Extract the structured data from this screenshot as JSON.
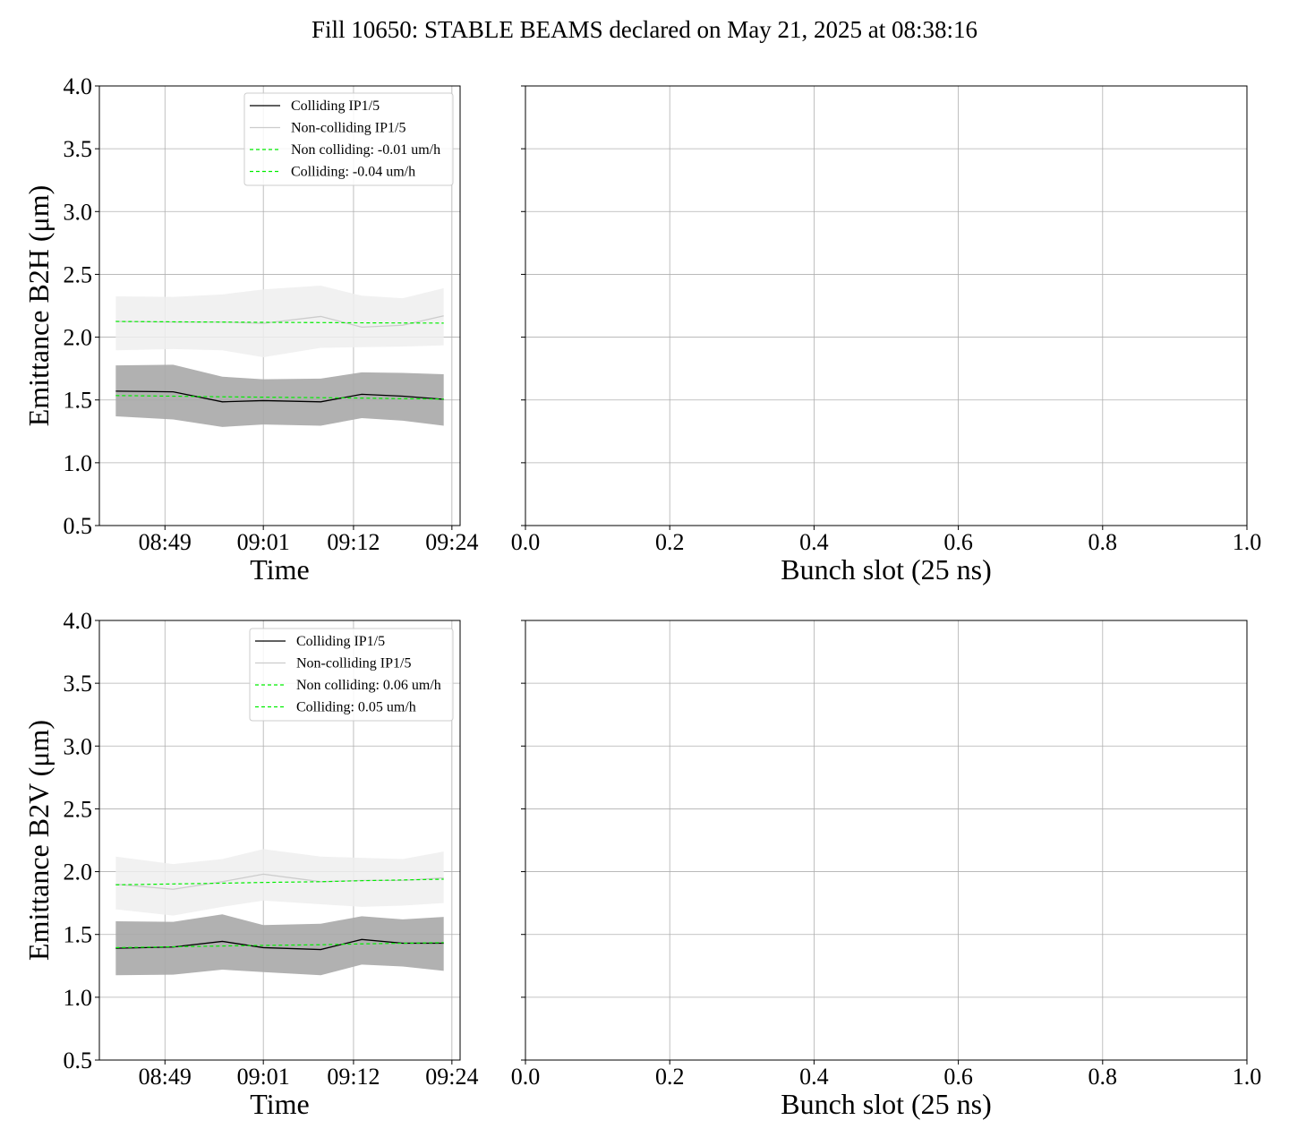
{
  "figure": {
    "title": "Fill 10650: STABLE BEAMS declared on May 21, 2025 at 08:38:16"
  },
  "colors": {
    "colliding_line": "#000000",
    "colliding_band": "#a9a9a9",
    "noncolliding_line": "#cccccc",
    "noncolliding_band": "#eeeeee",
    "fit_line": "#00ee00",
    "grid": "#b0b0b0"
  },
  "chart_data": [
    {
      "id": "b2h-time",
      "type": "line",
      "ylabel": "Emittance B2H (μm)",
      "xlabel": "Time",
      "ylim": [
        0.5,
        4.0
      ],
      "yticks": [
        0.5,
        1.0,
        1.5,
        2.0,
        2.5,
        3.0,
        3.5,
        4.0
      ],
      "ytick_labels": [
        "0.5",
        "1.0",
        "1.5",
        "2.0",
        "2.5",
        "3.0",
        "3.5",
        "4.0"
      ],
      "xlim": [
        "08:41",
        "09:25"
      ],
      "xticks": [
        "08:49",
        "09:01",
        "09:12",
        "09:24"
      ],
      "grid": true,
      "legend_position": "top-right",
      "x": [
        "08:43",
        "08:50",
        "08:56",
        "09:01",
        "09:08",
        "09:13",
        "09:18",
        "09:23"
      ],
      "series": [
        {
          "name": "Colliding IP1/5",
          "kind": "line",
          "values": [
            1.57,
            1.565,
            1.485,
            1.495,
            1.485,
            1.545,
            1.53,
            1.505
          ],
          "band_low": [
            1.37,
            1.345,
            1.285,
            1.305,
            1.295,
            1.355,
            1.335,
            1.295
          ],
          "band_high": [
            1.775,
            1.78,
            1.685,
            1.665,
            1.67,
            1.72,
            1.715,
            1.705
          ]
        },
        {
          "name": "Non-colliding IP1/5",
          "kind": "line",
          "values": [
            2.125,
            2.12,
            2.12,
            2.11,
            2.165,
            2.08,
            2.095,
            2.17
          ],
          "band_low": [
            1.895,
            1.905,
            1.895,
            1.84,
            1.915,
            1.92,
            1.925,
            1.935
          ],
          "band_high": [
            2.325,
            2.32,
            2.34,
            2.38,
            2.41,
            2.33,
            2.31,
            2.39
          ]
        },
        {
          "name": "Non colliding: -0.01 um/h",
          "kind": "fit",
          "values": [
            2.125,
            2.122,
            2.12,
            2.118,
            2.116,
            2.114,
            2.113,
            2.112
          ]
        },
        {
          "name": "Colliding: -0.04 um/h",
          "kind": "fit",
          "values": [
            1.535,
            1.53,
            1.525,
            1.522,
            1.518,
            1.515,
            1.51,
            1.507
          ]
        }
      ]
    },
    {
      "id": "b2h-bunch",
      "type": "scatter",
      "xlabel": "Bunch slot (25 ns)",
      "xlim": [
        0.0,
        1.0
      ],
      "xticks": [
        "0.0",
        "0.2",
        "0.4",
        "0.6",
        "0.8",
        "1.0"
      ],
      "ylim": [
        0.5,
        4.0
      ],
      "grid": true,
      "series": []
    },
    {
      "id": "b2v-time",
      "type": "line",
      "ylabel": "Emittance B2V (μm)",
      "xlabel": "Time",
      "ylim": [
        0.5,
        4.0
      ],
      "yticks": [
        0.5,
        1.0,
        1.5,
        2.0,
        2.5,
        3.0,
        3.5,
        4.0
      ],
      "ytick_labels": [
        "0.5",
        "1.0",
        "1.5",
        "2.0",
        "2.5",
        "3.0",
        "3.5",
        "4.0"
      ],
      "xlim": [
        "08:41",
        "09:25"
      ],
      "xticks": [
        "08:49",
        "09:01",
        "09:12",
        "09:24"
      ],
      "grid": true,
      "legend_position": "top-right",
      "x": [
        "08:43",
        "08:50",
        "08:56",
        "09:01",
        "09:08",
        "09:13",
        "09:18",
        "09:23"
      ],
      "series": [
        {
          "name": "Colliding IP1/5",
          "kind": "line",
          "values": [
            1.39,
            1.4,
            1.445,
            1.395,
            1.38,
            1.46,
            1.43,
            1.43
          ],
          "band_low": [
            1.175,
            1.18,
            1.22,
            1.2,
            1.175,
            1.26,
            1.245,
            1.21
          ],
          "band_high": [
            1.605,
            1.6,
            1.66,
            1.575,
            1.585,
            1.645,
            1.62,
            1.64
          ]
        },
        {
          "name": "Non-colliding IP1/5",
          "kind": "line",
          "values": [
            1.9,
            1.86,
            1.92,
            1.98,
            1.92,
            1.93,
            1.93,
            1.95
          ],
          "band_low": [
            1.7,
            1.65,
            1.72,
            1.77,
            1.74,
            1.72,
            1.73,
            1.75
          ],
          "band_high": [
            2.12,
            2.06,
            2.1,
            2.18,
            2.12,
            2.11,
            2.1,
            2.16
          ]
        },
        {
          "name": "Non colliding: 0.06 um/h",
          "kind": "fit",
          "values": [
            1.895,
            1.902,
            1.908,
            1.914,
            1.92,
            1.928,
            1.934,
            1.94
          ]
        },
        {
          "name": "Colliding: 0.05 um/h",
          "kind": "fit",
          "values": [
            1.395,
            1.402,
            1.408,
            1.413,
            1.418,
            1.425,
            1.43,
            1.435
          ]
        }
      ]
    },
    {
      "id": "b2v-bunch",
      "type": "scatter",
      "xlabel": "Bunch slot (25 ns)",
      "xlim": [
        0.0,
        1.0
      ],
      "xticks": [
        "0.0",
        "0.2",
        "0.4",
        "0.6",
        "0.8",
        "1.0"
      ],
      "ylim": [
        0.5,
        4.0
      ],
      "grid": true,
      "series": []
    }
  ]
}
